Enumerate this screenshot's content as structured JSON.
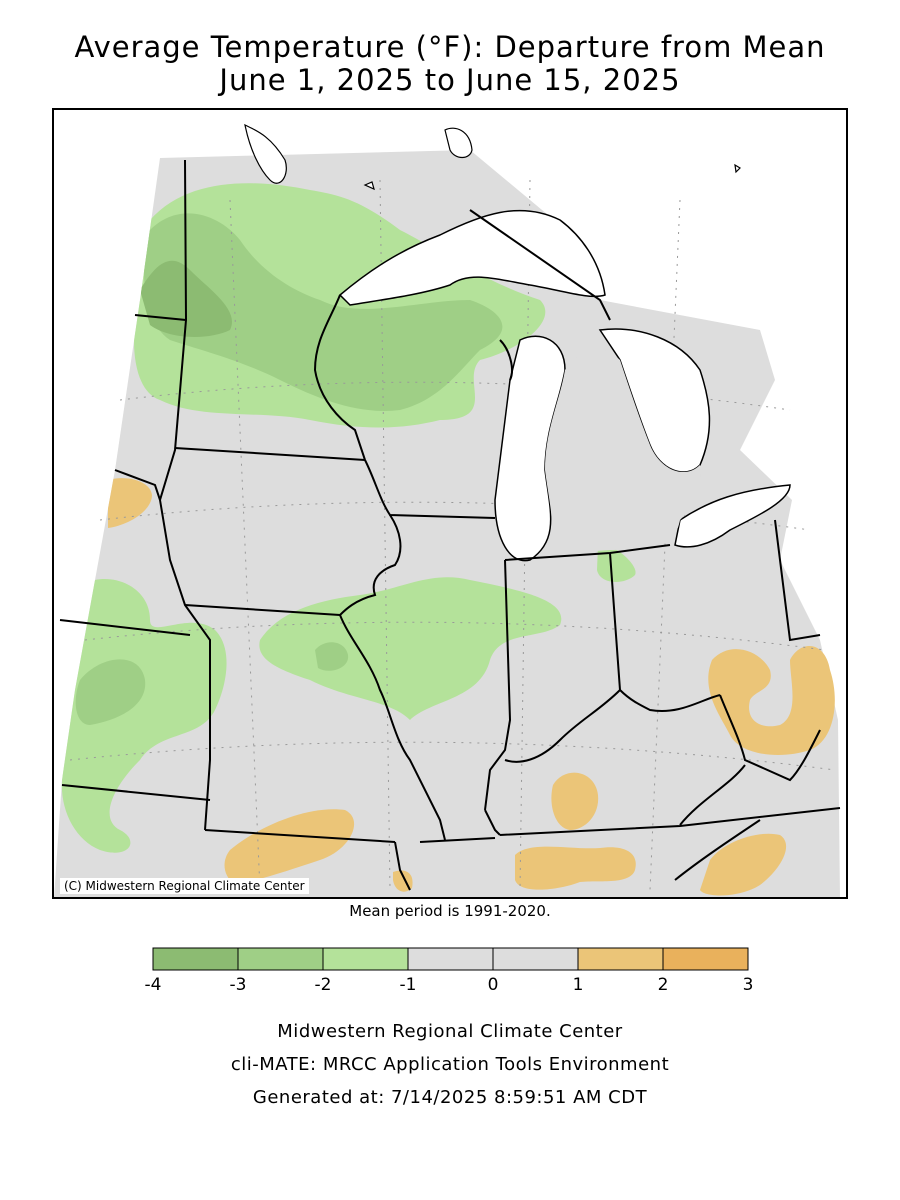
{
  "title": {
    "line1": "Average Temperature (°F): Departure from Mean",
    "line2": "June 1, 2025 to June 15, 2025"
  },
  "map": {
    "credit": "(C) Midwestern Regional Climate Center",
    "mean_period": "Mean period is 1991-2020.",
    "land_color": "#dddddd",
    "water_color": "#ffffff"
  },
  "legend": {
    "bins": [
      {
        "range": "-4 to -3",
        "color": "#8cbb72"
      },
      {
        "range": "-3 to -2",
        "color": "#9fcf86"
      },
      {
        "range": "-2 to -1",
        "color": "#b4e29a"
      },
      {
        "range": "-1 to 0",
        "color": "#dddddd"
      },
      {
        "range": "0 to 1",
        "color": "#dddddd"
      },
      {
        "range": "1 to 2",
        "color": "#ebc578"
      },
      {
        "range": "2 to 3",
        "color": "#e9b15c"
      }
    ],
    "ticks": [
      "-4",
      "-3",
      "-2",
      "-1",
      "0",
      "1",
      "2",
      "3"
    ]
  },
  "footer": {
    "line1": "Midwestern Regional Climate Center",
    "line2": "cli-MATE: MRCC Application Tools Environment",
    "line3": "Generated at: 7/14/2025 8:59:51 AM CDT"
  }
}
